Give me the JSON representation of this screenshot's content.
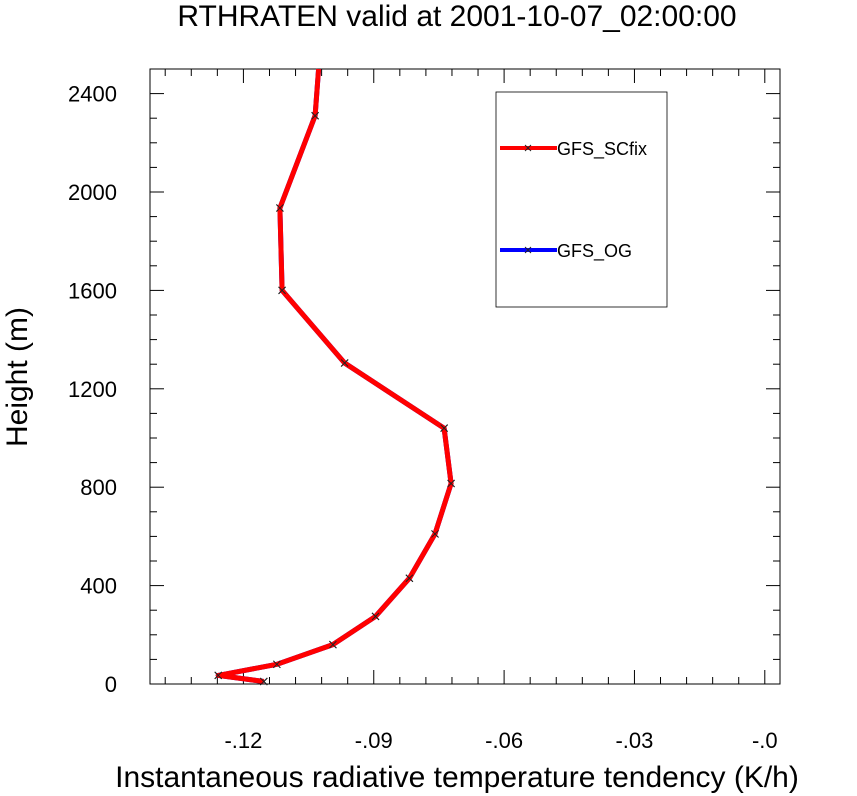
{
  "chart_data": {
    "type": "line",
    "title": "RTHRATEN valid at 2001-10-07_02:00:00",
    "xlabel": "Instantaneous radiative temperature tendency (K/h)",
    "ylabel": "Height (m)",
    "xlim": [
      -0.1415,
      0.0035
    ],
    "ylim": [
      0,
      2500
    ],
    "x_major_ticks": [
      -0.12,
      -0.09,
      -0.06,
      -0.03,
      0.0
    ],
    "x_tick_labels": [
      "-.12",
      "-.09",
      "-.06",
      "-.03",
      "-.0"
    ],
    "y_major_ticks": [
      0,
      400,
      800,
      1200,
      1600,
      2000,
      2400
    ],
    "y_tick_labels": [
      "0",
      "400",
      "800",
      "1200",
      "1600",
      "2000",
      "2400"
    ],
    "grid": false,
    "legend_position": "top-right",
    "series": [
      {
        "name": "GFS_SCfix",
        "color": "#ff0000",
        "marker": "x",
        "x": [
          -0.1153,
          -0.1258,
          -0.1123,
          -0.0994,
          -0.0896,
          -0.0818,
          -0.0759,
          -0.0722,
          -0.0738,
          -0.0967,
          -0.1111,
          -0.1116,
          -0.1035,
          -0.1027
        ],
        "y": [
          10,
          35,
          80,
          160,
          275,
          430,
          610,
          815,
          1040,
          1305,
          1600,
          1935,
          2310,
          2500
        ]
      },
      {
        "name": "GFS_OG",
        "color": "#0000ff",
        "marker": "x",
        "x": [
          -0.1153,
          -0.1258,
          -0.1123,
          -0.0994,
          -0.0896,
          -0.0818,
          -0.0759,
          -0.0722,
          -0.0738,
          -0.0967,
          -0.1111,
          -0.1116,
          -0.1035,
          -0.1027
        ],
        "y": [
          10,
          35,
          80,
          160,
          275,
          430,
          610,
          815,
          1040,
          1305,
          1600,
          1935,
          2310,
          2500
        ]
      }
    ]
  }
}
